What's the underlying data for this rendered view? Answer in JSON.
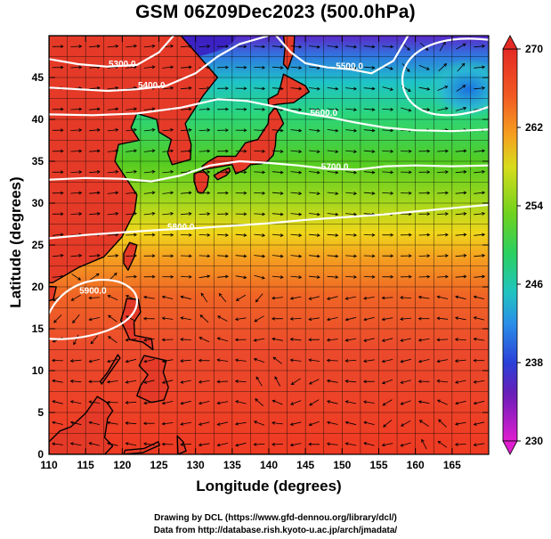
{
  "title": "GSM 06Z09Dec2023 (500.0hPa)",
  "axes": {
    "xlabel": "Longitude (degrees)",
    "ylabel": "Latitude  (degrees)",
    "xlim": [
      110,
      170
    ],
    "ylim": [
      0,
      50
    ],
    "xticks": [
      110,
      115,
      120,
      125,
      130,
      135,
      140,
      145,
      150,
      155,
      160,
      165
    ],
    "yticks": [
      0,
      5,
      10,
      15,
      20,
      25,
      30,
      35,
      40,
      45
    ]
  },
  "colorbar": {
    "min": 230,
    "max": 270,
    "labels": [
      270,
      262,
      254,
      246,
      238,
      230
    ]
  },
  "contours": [
    {
      "label": "5300.0",
      "lon": 120,
      "lat": 46.3
    },
    {
      "label": "5400.0",
      "lon": 124,
      "lat": 43.7
    },
    {
      "label": "5500.0",
      "lon": 151,
      "lat": 46.0
    },
    {
      "label": "5600.0",
      "lon": 147.5,
      "lat": 40.4
    },
    {
      "label": "5700.0",
      "lon": 149,
      "lat": 34.0
    },
    {
      "label": "5800.0",
      "lon": 128,
      "lat": 26.8
    },
    {
      "label": "5900.0",
      "lon": 116,
      "lat": 19.2
    }
  ],
  "credits": {
    "line1": "Drawing by DCL (https://www.gfd-dennou.org/library/dcl/)",
    "line2": "Data from http://database.rish.kyoto-u.ac.jp/arch/jmadata/"
  },
  "colors": {
    "contour": "#ffffff",
    "coast": "#000000",
    "grid": "#000000"
  }
}
